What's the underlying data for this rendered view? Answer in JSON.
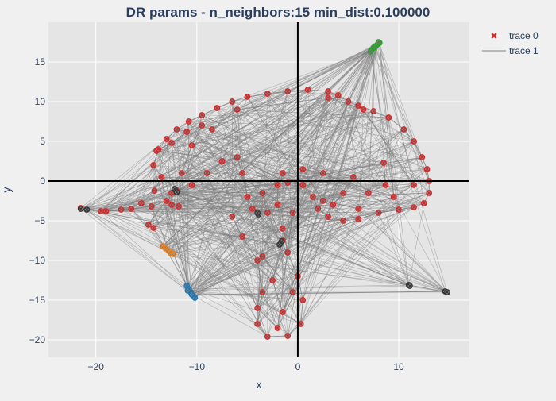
{
  "chart_data": {
    "type": "scatter",
    "title": "DR params - n_neighbors:15 min_dist:0.100000",
    "xlabel": "x",
    "ylabel": "y",
    "xlim": [
      -24.7,
      17.0
    ],
    "ylim": [
      -22.2,
      20.0
    ],
    "x_ticks": [
      -20,
      -10,
      0,
      10
    ],
    "y_ticks": [
      -20,
      -15,
      -10,
      -5,
      0,
      5,
      10,
      15
    ],
    "x_tick_labels": [
      "−20",
      "−10",
      "0",
      "10"
    ],
    "y_tick_labels": [
      "−20",
      "−15",
      "−10",
      "−5",
      "0",
      "5",
      "10",
      "15"
    ],
    "grid": true,
    "zero_lines": true,
    "legend_position": "top-right",
    "colors": {
      "background": "#f0f0f0",
      "plot_background": "#e5e5e5",
      "grid": "#ffffff",
      "zero_line": "#000000",
      "text": "#2a3f5f",
      "edge": "#7f7f7f",
      "point_outline": "#d62728",
      "point_fill": "#7f7f7f",
      "dark_marker": "#333333"
    },
    "series": [
      {
        "name": "trace 0",
        "mode": "markers",
        "marker": "x",
        "color": "#d62728",
        "clusters": [
          {
            "color": "#d62728",
            "points": [
              [
                -14.0,
                3.8
              ],
              [
                -13.0,
                5.3
              ],
              [
                -12.0,
                6.5
              ],
              [
                -10.8,
                7.5
              ],
              [
                -9.5,
                8.3
              ],
              [
                -8.0,
                9.2
              ],
              [
                -6.5,
                10.0
              ],
              [
                -5.0,
                10.6
              ],
              [
                -3.0,
                11.0
              ],
              [
                -1.0,
                11.3
              ],
              [
                1.0,
                11.5
              ],
              [
                3.0,
                11.3
              ],
              [
                4.0,
                10.8
              ],
              [
                5.0,
                10.0
              ],
              [
                6.0,
                9.5
              ],
              [
                7.5,
                8.8
              ],
              [
                9.0,
                8.0
              ],
              [
                10.5,
                6.5
              ],
              [
                11.5,
                5.0
              ],
              [
                12.3,
                3.0
              ],
              [
                12.8,
                1.5
              ],
              [
                13.0,
                0.0
              ],
              [
                13.0,
                -1.5
              ],
              [
                12.5,
                -2.8
              ],
              [
                11.5,
                -3.3
              ],
              [
                10.0,
                -3.6
              ],
              [
                8.0,
                -4.0
              ],
              [
                6.0,
                -4.8
              ],
              [
                4.5,
                -5.0
              ],
              [
                3.0,
                -4.5
              ],
              [
                2.0,
                -3.5
              ],
              [
                1.5,
                -2.0
              ],
              [
                0.5,
                -0.5
              ],
              [
                -1.0,
                -0.2
              ],
              [
                -2.0,
                -0.5
              ],
              [
                -2.0,
                -3.0
              ],
              [
                -1.5,
                -6.0
              ],
              [
                -1.0,
                -9.0
              ],
              [
                0.0,
                -12.0
              ],
              [
                0.5,
                -15.0
              ],
              [
                0.3,
                -18.0
              ],
              [
                -1.0,
                -19.5
              ],
              [
                -3.0,
                -19.6
              ],
              [
                -4.0,
                -18.0
              ],
              [
                -3.5,
                -14.0
              ],
              [
                -4.0,
                -10.0
              ],
              [
                -5.5,
                -7.0
              ],
              [
                -6.5,
                -4.5
              ],
              [
                -5.0,
                -2.0
              ],
              [
                -5.5,
                1.0
              ],
              [
                -6.0,
                3.0
              ],
              [
                -7.5,
                2.5
              ],
              [
                -9.0,
                1.0
              ],
              [
                -10.5,
                -0.5
              ],
              [
                -12.0,
                -1.2
              ],
              [
                -13.0,
                -2.5
              ],
              [
                -14.5,
                -3.2
              ],
              [
                -16.5,
                -3.5
              ],
              [
                -19.0,
                -3.8
              ],
              [
                -21.5,
                -3.4
              ],
              [
                -19.5,
                -3.8
              ],
              [
                -17.5,
                -3.6
              ],
              [
                -15.5,
                -2.8
              ],
              [
                -14.2,
                -1.2
              ],
              [
                -13.5,
                0.5
              ],
              [
                -14.3,
                2.0
              ],
              [
                -13.8,
                4.0
              ],
              [
                -12.5,
                4.8
              ],
              [
                -11.0,
                6.2
              ],
              [
                -9.5,
                7.0
              ],
              [
                -10.5,
                4.5
              ],
              [
                -11.5,
                1.0
              ],
              [
                -12.5,
                -1.5
              ],
              [
                -14.8,
                -5.5
              ],
              [
                -14.3,
                -5.9
              ],
              [
                -11.8,
                -3.2
              ],
              [
                -12.5,
                -3.0
              ],
              [
                8.5,
                2.3
              ],
              [
                8.7,
                -0.5
              ],
              [
                7.0,
                -1.5
              ],
              [
                5.5,
                0.5
              ],
              [
                3.5,
                -3.0
              ],
              [
                4.5,
                -1.5
              ],
              [
                -3.0,
                -4.0
              ],
              [
                -3.5,
                -1.5
              ],
              [
                -1.5,
                -7.5
              ],
              [
                -2.5,
                -12.5
              ],
              [
                -1.5,
                -16.5
              ],
              [
                -0.5,
                -14.0
              ],
              [
                -3.5,
                -9.5
              ],
              [
                -4.0,
                -16.0
              ],
              [
                -2.0,
                -18.5
              ],
              [
                -0.5,
                -4.0
              ],
              [
                -4.5,
                -3.5
              ],
              [
                -1.5,
                1.0
              ],
              [
                2.5,
                1.0
              ],
              [
                0.5,
                1.5
              ],
              [
                2.5,
                -2.5
              ],
              [
                6.0,
                -3.5
              ],
              [
                9.5,
                -2.0
              ],
              [
                11.5,
                -0.5
              ],
              [
                6.5,
                9.0
              ],
              [
                3.0,
                10.5
              ],
              [
                -6.0,
                9.0
              ],
              [
                -8.5,
                6.5
              ]
            ]
          },
          {
            "color": "#2ca02c",
            "points": [
              [
                7.3,
                16.5
              ],
              [
                7.5,
                16.8
              ],
              [
                7.7,
                17.0
              ],
              [
                7.9,
                17.2
              ],
              [
                8.1,
                17.4
              ],
              [
                7.2,
                16.3
              ],
              [
                7.6,
                16.9
              ],
              [
                8.0,
                17.5
              ]
            ]
          },
          {
            "color": "#ff7f0e",
            "points": [
              [
                -13.4,
                -8.2
              ],
              [
                -13.1,
                -8.5
              ],
              [
                -12.8,
                -8.8
              ],
              [
                -12.6,
                -9.1
              ],
              [
                -12.3,
                -9.2
              ]
            ]
          },
          {
            "color": "#1f77b4",
            "points": [
              [
                -11.0,
                -13.2
              ],
              [
                -10.8,
                -13.6
              ],
              [
                -10.6,
                -14.0
              ],
              [
                -10.4,
                -14.4
              ],
              [
                -10.2,
                -14.7
              ],
              [
                -10.9,
                -13.8
              ],
              [
                -10.5,
                -14.3
              ]
            ]
          },
          {
            "color": "#333333",
            "points": [
              [
                14.6,
                -13.9
              ],
              [
                14.8,
                -14.0
              ],
              [
                11.0,
                -13.1
              ],
              [
                11.1,
                -13.2
              ],
              [
                -12.2,
                -1.0
              ],
              [
                -12.0,
                -1.4
              ],
              [
                -3.9,
                -4.2
              ],
              [
                -4.0,
                -4.0
              ],
              [
                -1.6,
                -7.6
              ],
              [
                -1.8,
                -8.0
              ],
              [
                -20.9,
                -3.6
              ],
              [
                -21.5,
                -3.5
              ]
            ]
          }
        ]
      },
      {
        "name": "trace 1",
        "mode": "lines",
        "color": "#7f7f7f",
        "width": 1
      }
    ]
  }
}
